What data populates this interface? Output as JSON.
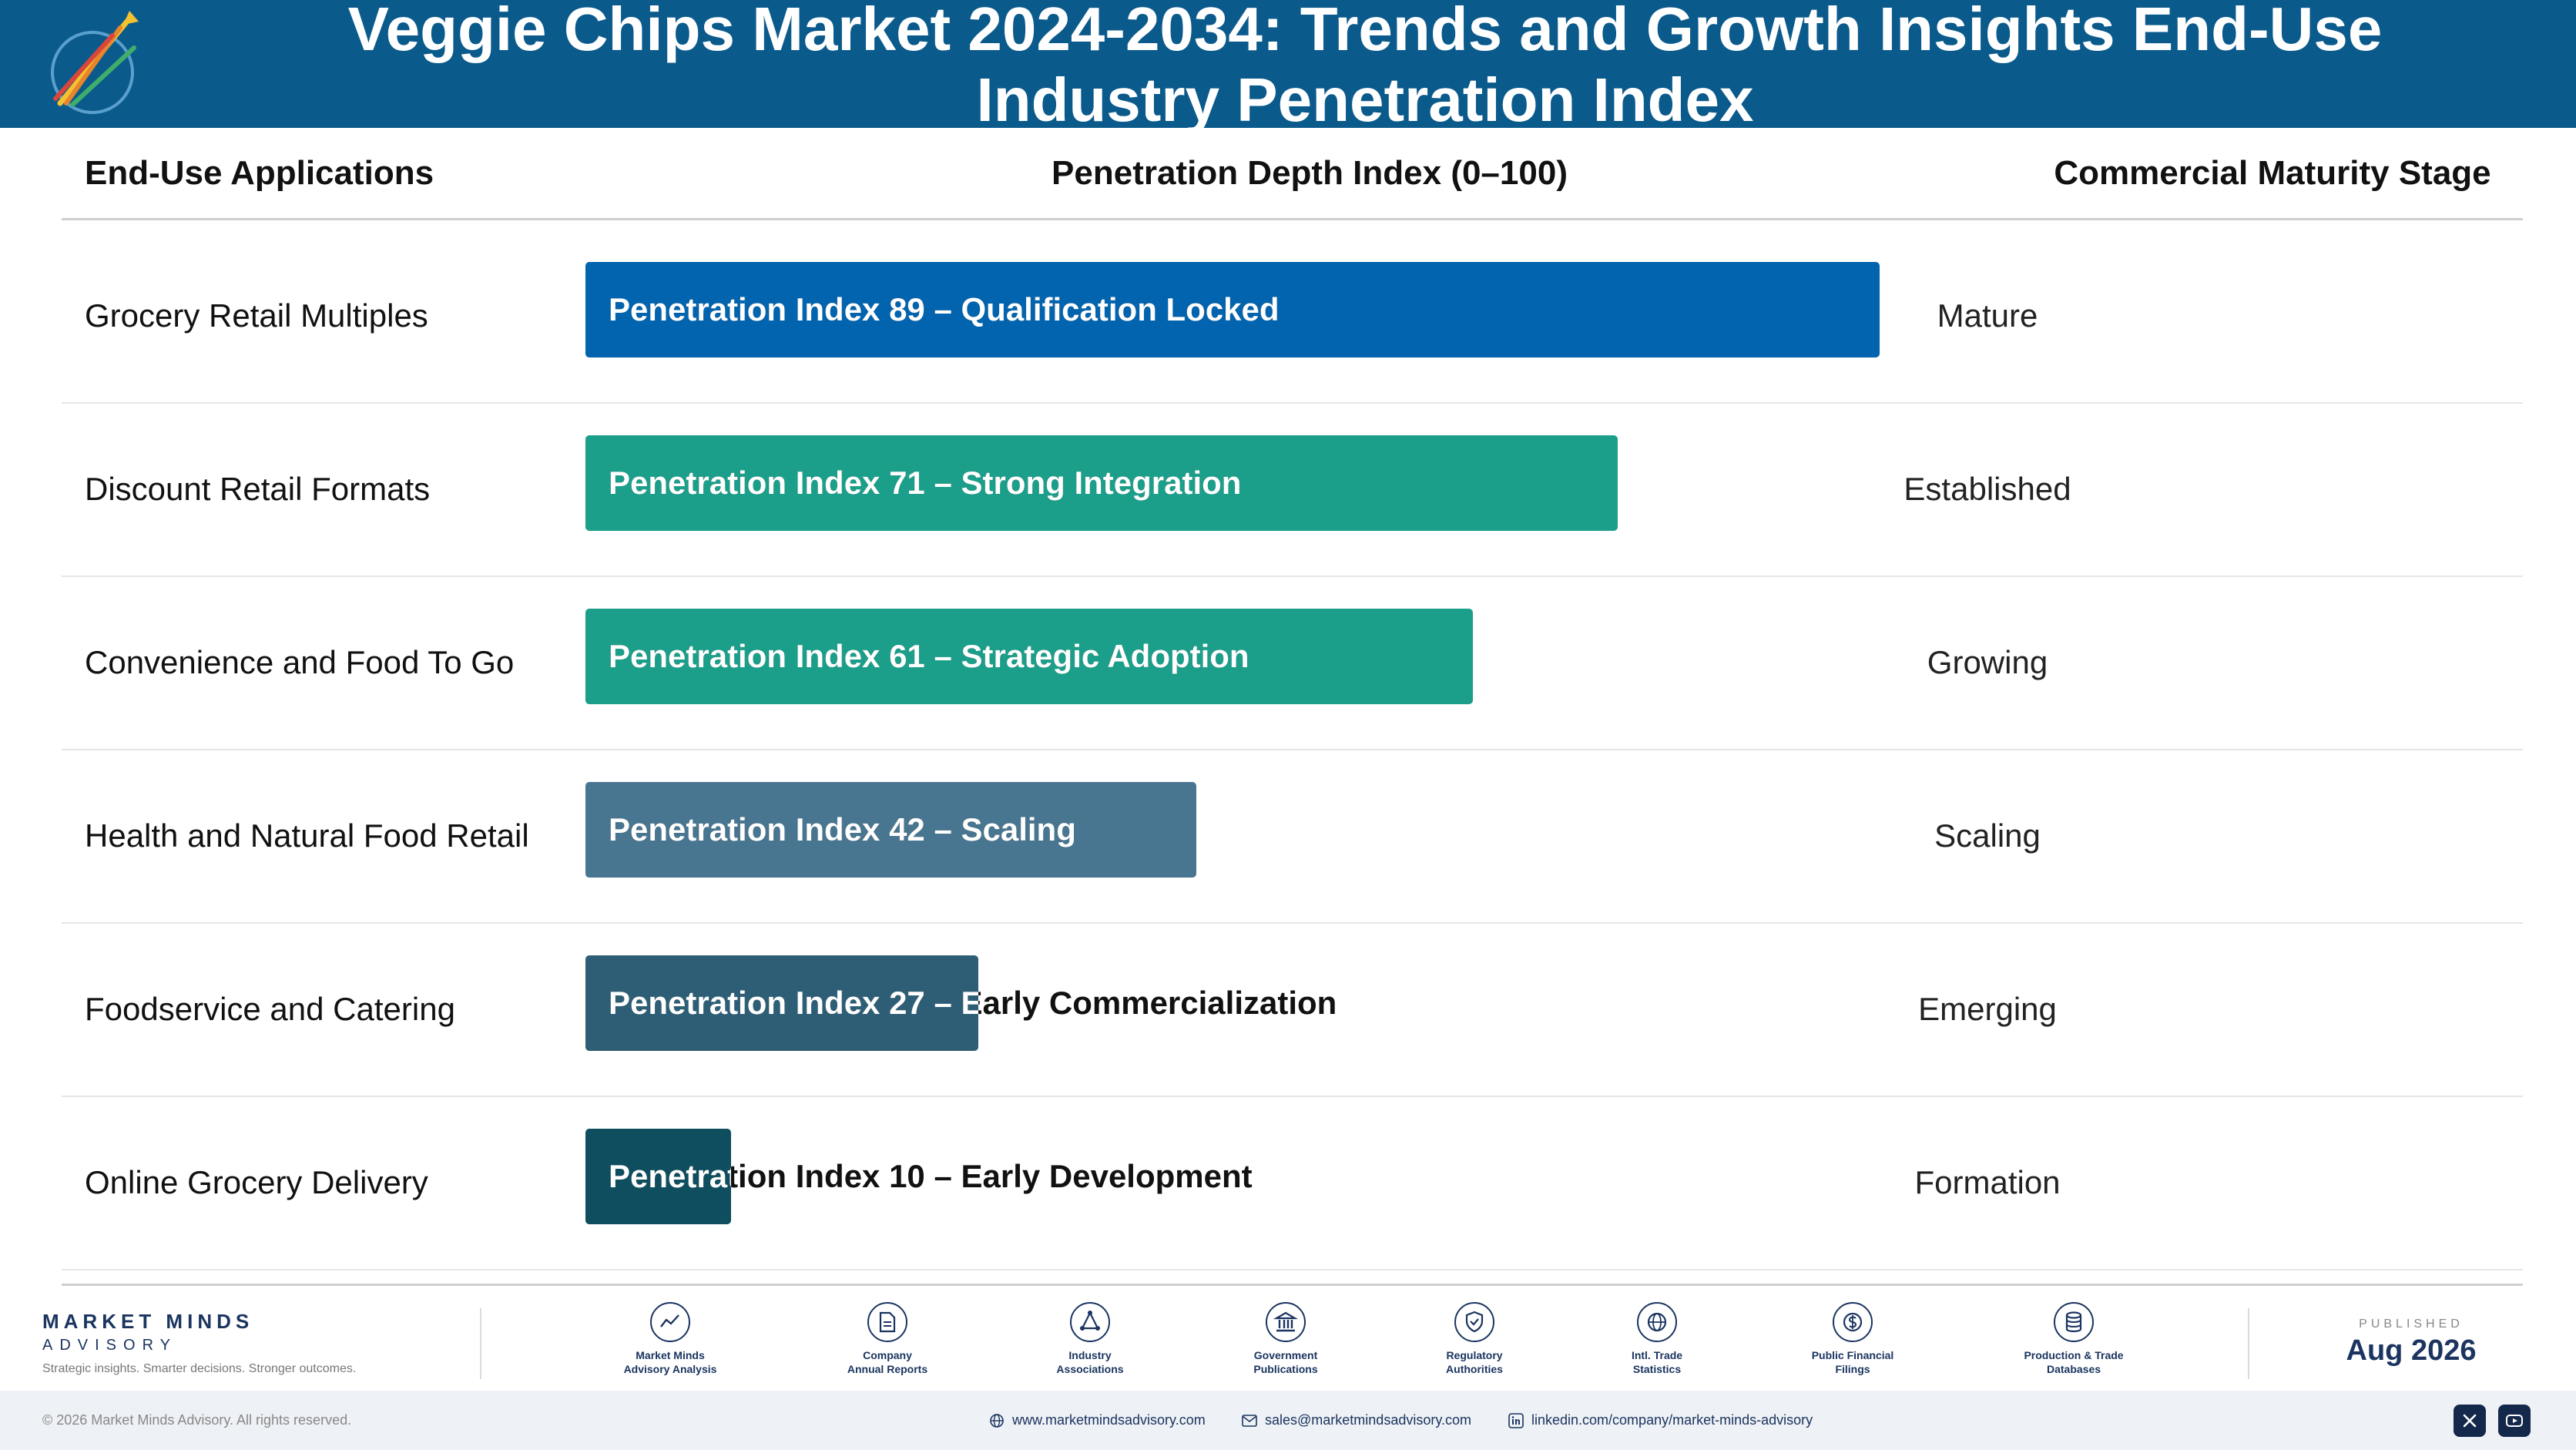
{
  "header": {
    "title_line1": "Veggie Chips Market 2024-2034: Trends and Growth Insights End-Use",
    "title_line2": "Industry Penetration Index",
    "logo_caption": "Market Minds Advisory"
  },
  "columns": {
    "applications": "End-Use Applications",
    "index": "Penetration Depth Index (0–100)",
    "stage": "Commercial Maturity Stage"
  },
  "chart_data": {
    "type": "bar",
    "orientation": "horizontal",
    "xlim": [
      0,
      100
    ],
    "categories": [
      "Grocery Retail Multiples",
      "Discount Retail Formats",
      "Convenience and Food To Go",
      "Health and Natural Food Retail",
      "Foodservice and Catering",
      "Online Grocery Delivery"
    ],
    "values": [
      89,
      71,
      61,
      42,
      27,
      10
    ],
    "bar_labels": [
      "Penetration Index 89 – Qualification Locked",
      "Penetration Index 71 – Strong Integration",
      "Penetration Index 61 – Strategic Adoption",
      "Penetration Index 42 – Scaling",
      "Penetration Index 27 – Early Commercialization",
      "Penetration Index 10 – Early Development"
    ],
    "stages": [
      "Mature",
      "Established",
      "Growing",
      "Scaling",
      "Emerging",
      "Formation"
    ],
    "colors": [
      "#0264ae",
      "#1b9e8a",
      "#1b9e8a",
      "#48758f",
      "#2e5e76",
      "#0f4e5e"
    ]
  },
  "footer": {
    "brand_name": "MARKET MINDS",
    "brand_sub": "ADVISORY",
    "brand_tagline": "Strategic insights. Smarter decisions. Stronger outcomes.",
    "sources": [
      {
        "line1": "Market Minds",
        "line2": "Advisory Analysis",
        "icon": "chart-line-icon"
      },
      {
        "line1": "Company",
        "line2": "Annual Reports",
        "icon": "document-icon"
      },
      {
        "line1": "Industry",
        "line2": "Associations",
        "icon": "network-icon"
      },
      {
        "line1": "Government",
        "line2": "Publications",
        "icon": "building-icon"
      },
      {
        "line1": "Regulatory",
        "line2": "Authorities",
        "icon": "shield-icon"
      },
      {
        "line1": "Intl. Trade",
        "line2": "Statistics",
        "icon": "globe-icon"
      },
      {
        "line1": "Public Financial",
        "line2": "Filings",
        "icon": "dollar-icon"
      },
      {
        "line1": "Production & Trade",
        "line2": "Databases",
        "icon": "database-icon"
      }
    ],
    "published_label": "PUBLISHED",
    "published_date": "Aug 2026",
    "copyright": "© 2026 Market Minds Advisory. All rights reserved.",
    "website": "www.marketmindsadvisory.com",
    "email": "sales@marketmindsadvisory.com",
    "linkedin": "linkedin.com/company/market-minds-advisory"
  }
}
